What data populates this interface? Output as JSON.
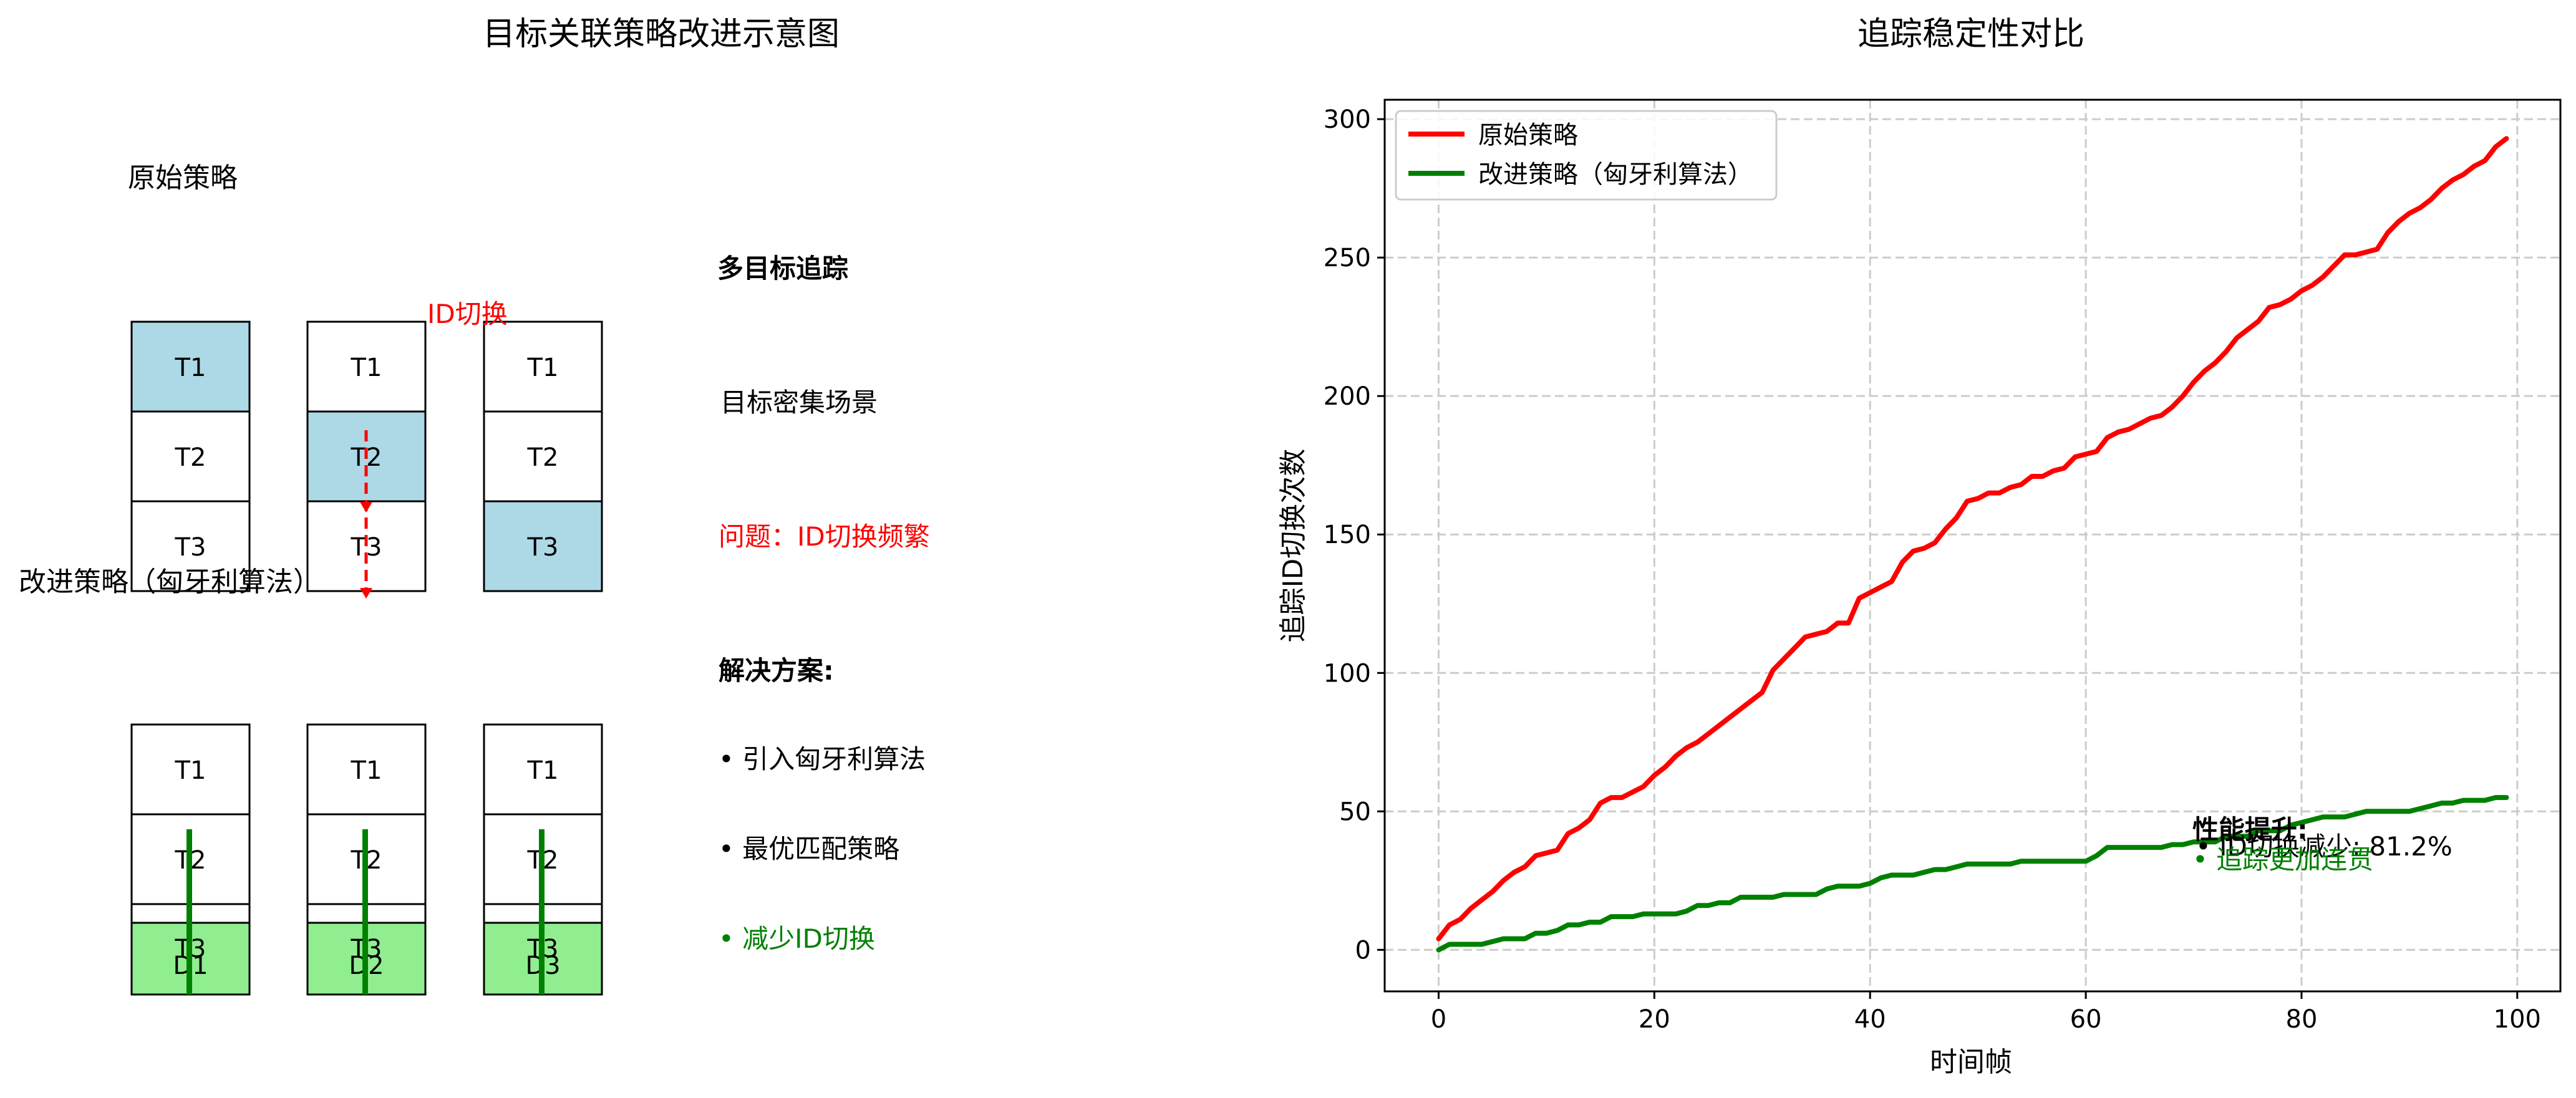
{
  "chart_data": [
    {
      "type": "diagram",
      "title": "目标关联策略改进示意图",
      "original_label": "原始策略",
      "improved_label": "改进策略（匈牙利算法）",
      "id_switch_label": "ID切换",
      "track_labels": [
        "T1",
        "T2",
        "T3"
      ],
      "detection_labels": [
        "D1",
        "D2",
        "D3"
      ],
      "original_highlight_rows": [
        0,
        1,
        2
      ],
      "notes": {
        "heading": "多目标追踪",
        "scene": "目标密集场景",
        "problem": "问题：ID切换频繁",
        "solution_heading": "解决方案:",
        "bullets": [
          "• 引入匈牙利算法",
          "• 最优匹配策略"
        ],
        "highlight_bullet": "• 减少ID切换"
      },
      "colors": {
        "highlight": "#add8e6",
        "detection": "#90ee90",
        "red": "#ff0000",
        "green": "#008000"
      }
    },
    {
      "type": "line",
      "title": "追踪稳定性对比",
      "xlabel": "时间帧",
      "ylabel": "追踪ID切换次数",
      "xlim": [
        -5,
        104
      ],
      "ylim": [
        -15,
        307
      ],
      "xticks": [
        0,
        20,
        40,
        60,
        80,
        100
      ],
      "yticks": [
        0,
        50,
        100,
        150,
        200,
        250,
        300
      ],
      "grid": true,
      "legend_position": "upper left",
      "series": [
        {
          "name": "原始策略",
          "color": "#ff0000",
          "points": [
            [
              0,
              4
            ],
            [
              1,
              9
            ],
            [
              2,
              11
            ],
            [
              3,
              15
            ],
            [
              4,
              18
            ],
            [
              5,
              21
            ],
            [
              6,
              25
            ],
            [
              7,
              28
            ],
            [
              8,
              30
            ],
            [
              9,
              34
            ],
            [
              10,
              35
            ],
            [
              11,
              36
            ],
            [
              12,
              42
            ],
            [
              13,
              44
            ],
            [
              14,
              47
            ],
            [
              15,
              53
            ],
            [
              16,
              55
            ],
            [
              17,
              55
            ],
            [
              18,
              57
            ],
            [
              19,
              59
            ],
            [
              20,
              63
            ],
            [
              21,
              66
            ],
            [
              22,
              70
            ],
            [
              23,
              73
            ],
            [
              24,
              75
            ],
            [
              25,
              78
            ],
            [
              26,
              81
            ],
            [
              27,
              84
            ],
            [
              28,
              87
            ],
            [
              29,
              90
            ],
            [
              30,
              93
            ],
            [
              31,
              101
            ],
            [
              32,
              105
            ],
            [
              33,
              109
            ],
            [
              34,
              113
            ],
            [
              35,
              114
            ],
            [
              36,
              115
            ],
            [
              37,
              118
            ],
            [
              38,
              118
            ],
            [
              39,
              127
            ],
            [
              40,
              129
            ],
            [
              41,
              131
            ],
            [
              42,
              133
            ],
            [
              43,
              140
            ],
            [
              44,
              144
            ],
            [
              45,
              145
            ],
            [
              46,
              147
            ],
            [
              47,
              152
            ],
            [
              48,
              156
            ],
            [
              49,
              162
            ],
            [
              50,
              163
            ],
            [
              51,
              165
            ],
            [
              52,
              165
            ],
            [
              53,
              167
            ],
            [
              54,
              168
            ],
            [
              55,
              171
            ],
            [
              56,
              171
            ],
            [
              57,
              173
            ],
            [
              58,
              174
            ],
            [
              59,
              178
            ],
            [
              60,
              179
            ],
            [
              61,
              180
            ],
            [
              62,
              185
            ],
            [
              63,
              187
            ],
            [
              64,
              188
            ],
            [
              65,
              190
            ],
            [
              66,
              192
            ],
            [
              67,
              193
            ],
            [
              68,
              196
            ],
            [
              69,
              200
            ],
            [
              70,
              205
            ],
            [
              71,
              209
            ],
            [
              72,
              212
            ],
            [
              73,
              216
            ],
            [
              74,
              221
            ],
            [
              75,
              224
            ],
            [
              76,
              227
            ],
            [
              77,
              232
            ],
            [
              78,
              233
            ],
            [
              79,
              235
            ],
            [
              80,
              238
            ],
            [
              81,
              240
            ],
            [
              82,
              243
            ],
            [
              83,
              247
            ],
            [
              84,
              251
            ],
            [
              85,
              251
            ],
            [
              86,
              252
            ],
            [
              87,
              253
            ],
            [
              88,
              259
            ],
            [
              89,
              263
            ],
            [
              90,
              266
            ],
            [
              91,
              268
            ],
            [
              92,
              271
            ],
            [
              93,
              275
            ],
            [
              94,
              278
            ],
            [
              95,
              280
            ],
            [
              96,
              283
            ],
            [
              97,
              285
            ],
            [
              98,
              290
            ],
            [
              99,
              293
            ]
          ]
        },
        {
          "name": "改进策略（匈牙利算法）",
          "color": "#008000",
          "points": [
            [
              0,
              0
            ],
            [
              1,
              2
            ],
            [
              4,
              2
            ],
            [
              5,
              3
            ],
            [
              6,
              4
            ],
            [
              8,
              4
            ],
            [
              9,
              6
            ],
            [
              10,
              6
            ],
            [
              11,
              7
            ],
            [
              12,
              9
            ],
            [
              13,
              9
            ],
            [
              14,
              10
            ],
            [
              15,
              10
            ],
            [
              16,
              12
            ],
            [
              18,
              12
            ],
            [
              19,
              13
            ],
            [
              22,
              13
            ],
            [
              23,
              14
            ],
            [
              24,
              16
            ],
            [
              25,
              16
            ],
            [
              26,
              17
            ],
            [
              27,
              17
            ],
            [
              28,
              19
            ],
            [
              31,
              19
            ],
            [
              32,
              20
            ],
            [
              35,
              20
            ],
            [
              36,
              22
            ],
            [
              37,
              23
            ],
            [
              39,
              23
            ],
            [
              40,
              24
            ],
            [
              41,
              26
            ],
            [
              42,
              27
            ],
            [
              44,
              27
            ],
            [
              45,
              28
            ],
            [
              46,
              29
            ],
            [
              47,
              29
            ],
            [
              48,
              30
            ],
            [
              49,
              31
            ],
            [
              53,
              31
            ],
            [
              54,
              32
            ],
            [
              60,
              32
            ],
            [
              61,
              34
            ],
            [
              62,
              37
            ],
            [
              67,
              37
            ],
            [
              68,
              38
            ],
            [
              69,
              38
            ],
            [
              70,
              39
            ],
            [
              72,
              39
            ],
            [
              73,
              41
            ],
            [
              75,
              41
            ],
            [
              76,
              43
            ],
            [
              78,
              43
            ],
            [
              79,
              45
            ],
            [
              80,
              46
            ],
            [
              81,
              47
            ],
            [
              82,
              48
            ],
            [
              84,
              48
            ],
            [
              85,
              49
            ],
            [
              86,
              50
            ],
            [
              90,
              50
            ],
            [
              91,
              51
            ],
            [
              92,
              52
            ],
            [
              93,
              53
            ],
            [
              94,
              53
            ],
            [
              95,
              54
            ],
            [
              97,
              54
            ],
            [
              98,
              55
            ],
            [
              99,
              55
            ]
          ]
        }
      ],
      "annotation": {
        "heading": "性能提升:",
        "line1": "• ID切换减少: 81.2%",
        "line2": "• 追踪更加连贯"
      }
    }
  ]
}
